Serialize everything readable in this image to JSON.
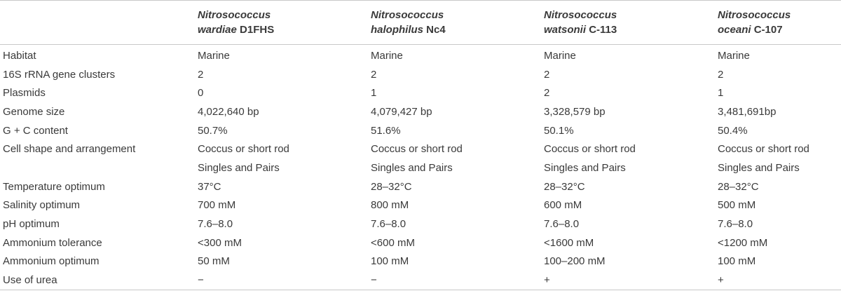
{
  "table": {
    "headers": [
      {
        "genus": "",
        "epithet": "",
        "strain": ""
      },
      {
        "genus": "Nitrosococcus",
        "epithet": "wardiae",
        "strain": "D1FHS"
      },
      {
        "genus": "Nitrosococcus",
        "epithet": "halophilus",
        "strain": "Nc4"
      },
      {
        "genus": "Nitrosococcus",
        "epithet": "watsonii",
        "strain": "C-113"
      },
      {
        "genus": "Nitrosococcus",
        "epithet": "oceani",
        "strain": "C-107"
      }
    ],
    "rows": [
      [
        "Habitat",
        "Marine",
        "Marine",
        "Marine",
        "Marine"
      ],
      [
        "16S rRNA gene clusters",
        "2",
        "2",
        "2",
        "2"
      ],
      [
        "Plasmids",
        "0",
        "1",
        "2",
        "1"
      ],
      [
        "Genome size",
        "4,022,640 bp",
        "4,079,427 bp",
        "3,328,579 bp",
        "3,481,691bp"
      ],
      [
        "G + C content",
        "50.7%",
        "51.6%",
        "50.1%",
        "50.4%"
      ],
      [
        "Cell shape and arrangement",
        "Coccus or short rod",
        "Coccus or short rod",
        "Coccus or short rod",
        "Coccus or short rod"
      ],
      [
        "",
        "Singles and Pairs",
        "Singles and Pairs",
        "Singles and Pairs",
        "Singles and Pairs"
      ],
      [
        "Temperature optimum",
        "37°C",
        "28–32°C",
        "28–32°C",
        "28–32°C"
      ],
      [
        "Salinity optimum",
        "700 mM",
        "800 mM",
        "600 mM",
        "500 mM"
      ],
      [
        "pH optimum",
        "7.6–8.0",
        "7.6–8.0",
        "7.6–8.0",
        "7.6–8.0"
      ],
      [
        "Ammonium tolerance",
        "<300 mM",
        "<600 mM",
        "<1600 mM",
        "<1200 mM"
      ],
      [
        "Ammonium optimum",
        "50 mM",
        "100 mM",
        "100–200 mM",
        "100 mM"
      ],
      [
        "Use of urea",
        "−",
        "−",
        "+",
        "+"
      ]
    ]
  }
}
